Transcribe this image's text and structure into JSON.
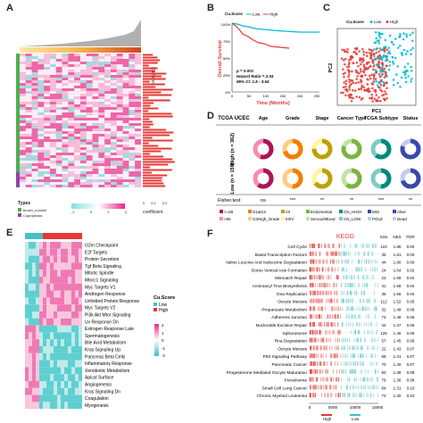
{
  "panels": {
    "a": {
      "label": "A"
    },
    "b": {
      "label": "B"
    },
    "c": {
      "label": "C"
    },
    "d": {
      "label": "D"
    },
    "e": {
      "label": "E"
    },
    "f": {
      "label": "F"
    }
  },
  "panel_a": {
    "score_label": "Cu.Score",
    "types_title": "Types",
    "types": [
      "brown_module",
      "Cuproptosis"
    ],
    "type_colors": [
      "#4caf50",
      "#8e44ad"
    ],
    "colorbar_ticks": [
      "-2",
      "0",
      "2",
      "4"
    ],
    "coef_label": "coefficient",
    "coef_axis": [
      "0",
      "0.1",
      "0.2"
    ]
  },
  "panel_b": {
    "legend_title": "Cu.Score",
    "legend_items": [
      "Low",
      "High"
    ],
    "ylabel": "Overall Survival",
    "xlabel": "Time (Months)",
    "y_ticks": [
      "100%",
      "75%",
      "50%",
      "25%",
      "0%"
    ],
    "x_ticks": [
      "0",
      "50",
      "100",
      "150",
      "200",
      "250"
    ],
    "stats": [
      "p = 0.001",
      "Hazard Ratio = 2.34",
      "95% CI: 1.5 - 3.64"
    ],
    "colors": {
      "low": "#00bcd4",
      "high": "#e53935"
    }
  },
  "panel_c": {
    "legend_title": "Cu.Score",
    "legend_items": [
      "Low",
      "High"
    ],
    "xlabel": "PC1",
    "ylabel": "PC2"
  },
  "panel_d": {
    "dataset": "TCGA UCEC",
    "columns": [
      "Age",
      "Grade",
      "Stage",
      "Cancer Type",
      "TCGA Subtype",
      "Status"
    ],
    "row_high": "High (n = 362)",
    "row_low": "Low (n = 159)",
    "fisher_label": "Fisher.test",
    "fisher": [
      "ns",
      "***",
      "**",
      "**",
      "***",
      "**"
    ],
    "legend": [
      [
        "<=65",
        "G1&G2",
        "I/II",
        "Endometrial",
        "CN_HIGH",
        "MSI",
        "Alive"
      ],
      [
        ">65",
        "G3High_Grade",
        "III/IV",
        "Serous/Mixed",
        "CN_LOW",
        "POLE",
        "Dead"
      ]
    ]
  },
  "panel_e": {
    "legend_title": "Cu.Score",
    "legend_items": [
      "Low",
      "High"
    ],
    "scale_ticks": [
      "2",
      "1",
      "0",
      "-1",
      "-2"
    ],
    "pathways": [
      "G2m Checkpoint",
      "E2f Targets",
      "Protein Secretion",
      "Tgf Beta Signaling",
      "Mitotic Spindle",
      "Mtorc1 Signaling",
      "Myc Targets V1",
      "Androgen Response",
      "Unfolded Protein Response",
      "Myc Targets V2",
      "Pi3k Akt Mtor Signaling",
      "Uv Response Dn",
      "Estrogen Response Late",
      "Spermatogenesis",
      "Bile Acid Metabolism",
      "Kras Signaling Up",
      "Pancreas Beta Cells",
      "Inflammatory Response",
      "Xenobiotic Metabolism",
      "Apical Surface",
      "Angiogenesis",
      "Kras Signaling Dn",
      "Coagulation",
      "Myogenesis"
    ]
  },
  "panel_f": {
    "title": "KEGG",
    "headers": [
      "Size",
      "NES",
      "FDR"
    ],
    "x_ticks": [
      "0",
      "5000",
      "10000",
      "15000"
    ],
    "x_high": "High",
    "x_low": "Low",
    "rows": [
      {
        "name": "Cell Cycle",
        "size": "124",
        "nes": "1.85",
        "fdr": "0.00"
      },
      {
        "name": "Basal Transcription Factors",
        "size": "35",
        "nes": "1.81",
        "fdr": "0.00"
      },
      {
        "name": "Valine Leucine And Isoleucine Degradation",
        "size": "44",
        "nes": "1.80",
        "fdr": "0.00"
      },
      {
        "name": "Dorso Ventral Axis Formation",
        "size": "24",
        "nes": "1.64",
        "fdr": "0.02"
      },
      {
        "name": "Mismatch Repair",
        "size": "23",
        "nes": "1.58",
        "fdr": "0.04"
      },
      {
        "name": "Aminoacyl Trna Biosynthesis",
        "size": "41",
        "nes": "1.58",
        "fdr": "0.04"
      },
      {
        "name": "Dna Replication",
        "size": "36",
        "nes": "1.56",
        "fdr": "0.04"
      },
      {
        "name": "Oocyte Meiosis",
        "size": "112",
        "nes": "1.52",
        "fdr": "0.05"
      },
      {
        "name": "Propanoate Metabolism",
        "size": "32",
        "nes": "1.49",
        "fdr": "0.06"
      },
      {
        "name": "Adherens Junction",
        "size": "73",
        "nes": "1.48",
        "fdr": "0.06"
      },
      {
        "name": "Nucleotide Excision Repair",
        "size": "44",
        "nes": "1.47",
        "fdr": "0.06"
      },
      {
        "name": "Spliceosome",
        "size": "126",
        "nes": "1.46",
        "fdr": "0.06"
      },
      {
        "name": "Rna Degradation",
        "size": "57",
        "nes": "1.45",
        "fdr": "0.06"
      },
      {
        "name": "Oocyte Meiosis",
        "size": "22",
        "nes": "1.43",
        "fdr": "0.07"
      },
      {
        "name": "P53 Signaling Pathway",
        "size": "68",
        "nes": "1.41",
        "fdr": "0.07"
      },
      {
        "name": "Pancreatic Cancer",
        "size": "70",
        "nes": "1.40",
        "fdr": "0.07"
      },
      {
        "name": "Progesterone Mediated Oocyte Maturation",
        "size": "84",
        "nes": "1.38",
        "fdr": "0.08"
      },
      {
        "name": "Peroxisome",
        "size": "78",
        "nes": "1.36",
        "fdr": "0.08"
      },
      {
        "name": "Small Cell Lung Cancer",
        "size": "84",
        "nes": "1.31",
        "fdr": "0.10"
      },
      {
        "name": "Chronic Myeloid Leukemia",
        "size": "73",
        "nes": "1.30",
        "fdr": "0.10"
      }
    ]
  }
}
